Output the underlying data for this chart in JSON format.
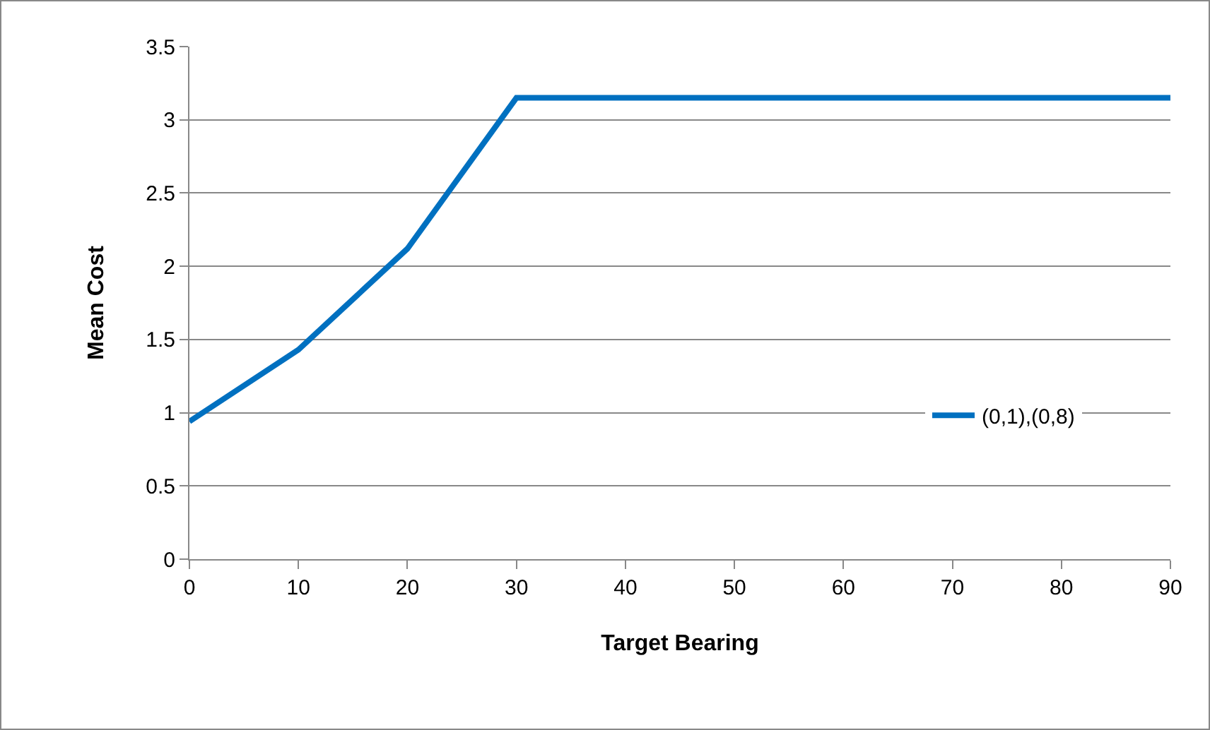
{
  "chart_data": {
    "type": "line",
    "xlabel": "Target Bearing",
    "ylabel": "Mean Cost",
    "x": [
      0,
      10,
      20,
      30,
      40,
      50,
      60,
      70,
      80,
      90
    ],
    "series": [
      {
        "name": "(0,1),(0,8)",
        "color": "#0070c0",
        "values": [
          0.94,
          1.43,
          2.12,
          3.15,
          3.15,
          3.15,
          3.15,
          3.15,
          3.15,
          3.15
        ]
      }
    ],
    "xlim": [
      0,
      90
    ],
    "xticks": [
      0,
      10,
      20,
      30,
      40,
      50,
      60,
      70,
      80,
      90
    ],
    "ylim": [
      0,
      3.5
    ],
    "yticks": [
      0,
      0.5,
      1,
      1.5,
      2,
      2.5,
      3,
      3.5
    ],
    "grid": "y",
    "legend": "right",
    "marker": "none",
    "line_style": "solid"
  }
}
